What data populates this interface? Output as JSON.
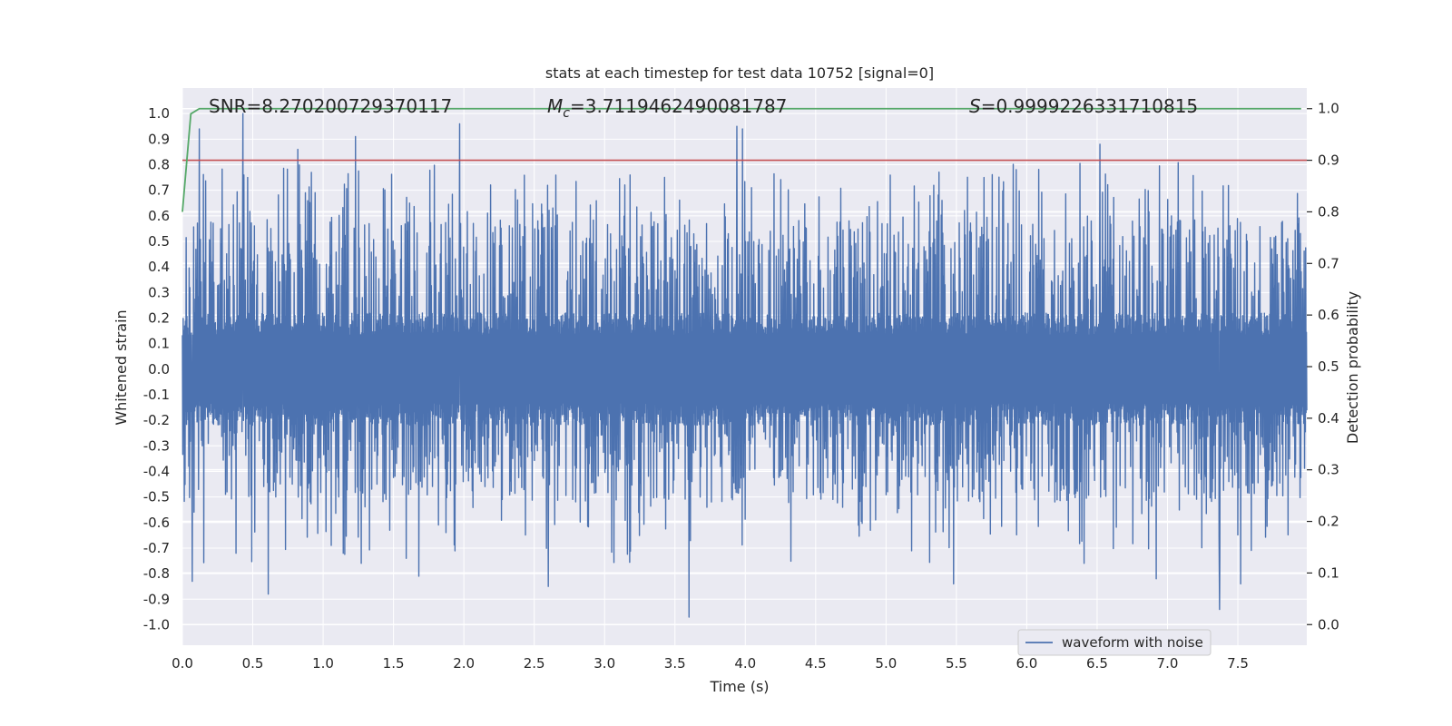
{
  "chart_data": {
    "type": "line",
    "title": "stats at each timestep for test data 10752 [signal=0]",
    "xlabel": "Time (s)",
    "ylabel": "Whitened strain",
    "y2label": "Detection probability",
    "xlim": [
      0.0,
      7.99
    ],
    "ylim": [
      -1.08,
      1.1
    ],
    "y2lim": [
      -0.04,
      1.04
    ],
    "xticks": [
      "0.0",
      "0.5",
      "1.0",
      "1.5",
      "2.0",
      "2.5",
      "3.0",
      "3.5",
      "4.0",
      "4.5",
      "5.0",
      "5.5",
      "6.0",
      "6.5",
      "7.0",
      "7.5"
    ],
    "yticks": [
      "1.0",
      "0.9",
      "0.8",
      "0.7",
      "0.6",
      "0.5",
      "0.4",
      "0.3",
      "0.2",
      "0.1",
      "0.0",
      "-0.1",
      "-0.2",
      "-0.3",
      "-0.4",
      "-0.5",
      "-0.6",
      "-0.7",
      "-0.8",
      "-0.9",
      "-1.0"
    ],
    "y2ticks": [
      "1.0",
      "0.9",
      "0.8",
      "0.7",
      "0.6",
      "0.5",
      "0.4",
      "0.3",
      "0.2",
      "0.1",
      "0.0"
    ],
    "grid": true,
    "legend": {
      "placement": "lower-right",
      "entries": [
        "waveform with noise"
      ]
    },
    "annotations": {
      "snr": "SNR=8.270200729370117",
      "mc_symbol": "M",
      "mc_sub": "c",
      "mc_value": "=3.7119462490081787",
      "s_symbol": "S",
      "s_value": "=0.9999226331710815"
    },
    "threshold": {
      "axis": "y2",
      "value": 0.9,
      "color": "#c44e52"
    },
    "series": [
      {
        "name": "waveform with noise",
        "axis": "y",
        "color": "#4c72b0",
        "kind": "noise",
        "x_start": 0.0,
        "x_end": 7.99,
        "n_points": 3000,
        "typical_peak_upper": 0.45,
        "typical_peak_lower": -0.4,
        "core_band": [
          -0.2,
          0.22
        ],
        "max": 1.0,
        "min": -0.97,
        "notable_peaks": [
          {
            "x": 0.43,
            "y": 1.0
          },
          {
            "x": 0.12,
            "y": 0.94
          },
          {
            "x": 0.82,
            "y": 0.86
          },
          {
            "x": 1.23,
            "y": 0.91
          },
          {
            "x": 1.97,
            "y": 0.96
          },
          {
            "x": 3.94,
            "y": 0.95
          },
          {
            "x": 3.98,
            "y": 0.94
          },
          {
            "x": 6.52,
            "y": 0.88
          },
          {
            "x": 3.6,
            "y": -0.97
          },
          {
            "x": 0.61,
            "y": -0.88
          },
          {
            "x": 7.37,
            "y": -0.94
          },
          {
            "x": 2.6,
            "y": -0.85
          },
          {
            "x": 5.48,
            "y": -0.84
          },
          {
            "x": 7.52,
            "y": -0.84
          },
          {
            "x": 0.07,
            "y": -0.83
          },
          {
            "x": 6.92,
            "y": -0.82
          },
          {
            "x": 1.68,
            "y": -0.81
          }
        ]
      },
      {
        "name": "detection probability",
        "axis": "y2",
        "color": "#55a868",
        "x": [
          0.0,
          0.06,
          0.12,
          0.2,
          7.95
        ],
        "values": [
          0.8,
          0.99,
          1.0,
          1.0,
          1.0
        ]
      }
    ]
  }
}
